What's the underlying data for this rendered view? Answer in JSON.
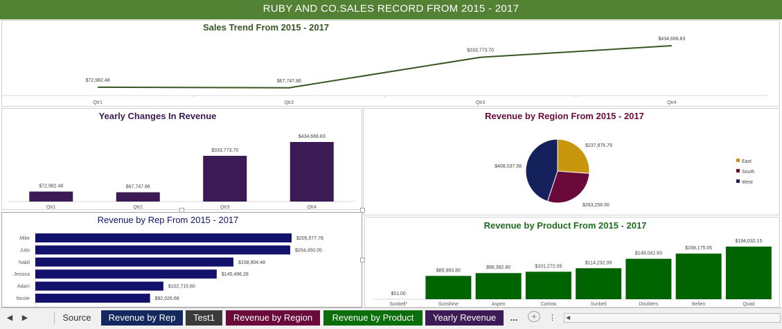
{
  "banner": {
    "title": "RUBY AND CO.SALES RECORD FROM 2015 - 2017"
  },
  "colors": {
    "green": "#548235",
    "darkgreen": "#006400",
    "purple": "#3c1a55",
    "navy": "#12126c",
    "gold": "#c8960c",
    "maroon": "#6a0a3a",
    "darknavy": "#14215a"
  },
  "charts": {
    "trend": {
      "title": "Sales Trend From 2015 - 2017"
    },
    "yearly": {
      "title": "Yearly Changes In Revenue"
    },
    "region": {
      "title": "Revenue by Region From 2015 - 2017"
    },
    "rep": {
      "title": "Revenue by Rep From 2015 - 2017"
    },
    "product": {
      "title": "Revenue by Product From 2015 - 2017"
    }
  },
  "chart_data": [
    {
      "type": "line",
      "title": "Sales Trend From 2015 - 2017",
      "categories": [
        "Qtr1",
        "Qtr2",
        "Qtr3",
        "Qtr4"
      ],
      "values": [
        72982.48,
        67747.86,
        333773.7,
        434666.83
      ],
      "labels": [
        "$72,982.48",
        "$67,747.86",
        "$333,773.70",
        "$434,666.83"
      ]
    },
    {
      "type": "bar",
      "title": "Yearly Changes In Revenue",
      "categories": [
        "Qtr1",
        "Qtr2",
        "Qtr3",
        "Qtr4"
      ],
      "values": [
        72982.48,
        67747.86,
        333773.7,
        434666.83
      ],
      "labels": [
        "$72,982.48",
        "$67,747.86",
        "$333,773.70",
        "$434,666.83"
      ]
    },
    {
      "type": "pie",
      "title": "Revenue by Region From 2015 - 2017",
      "categories": [
        "East",
        "South",
        "West"
      ],
      "values": [
        237876.79,
        263256.5,
        408037.58
      ],
      "labels": [
        "$237,876.79",
        "$263,256.50",
        "$408,037.58"
      ],
      "legend": "right"
    },
    {
      "type": "bar",
      "orientation": "horizontal",
      "title": "Revenue by Rep From 2015 - 2017",
      "categories": [
        "Mike",
        "Julie",
        "Nabil",
        "Jessica",
        "Adam",
        "Nicole"
      ],
      "values": [
        205577.78,
        204450.05,
        158904.48,
        145496.28,
        102715.6,
        92026.68
      ],
      "labels": [
        "$205,577.78",
        "$204,450.05",
        "$158,904.48",
        "$145,496.28",
        "$102,715.60",
        "$92,026.68"
      ]
    },
    {
      "type": "bar",
      "title": "Revenue by Product From 2015 - 2017",
      "categories": [
        "Sunbell*",
        "Sunshine",
        "Aspen",
        "Carlota",
        "Sunbell",
        "Doublers",
        "Bellen",
        "Quad"
      ],
      "values": [
        51.0,
        85983.8,
        96382.8,
        101272.05,
        114232.09,
        149041.93,
        168175.05,
        194032.15
      ],
      "labels": [
        "$51.00",
        "$85,983.80",
        "$96,382.80",
        "$101,272.05",
        "$114,232.09",
        "$149,041.93",
        "$168,175.05",
        "$194,032.15"
      ]
    }
  ],
  "tabs": [
    {
      "label": "Source",
      "bg": "#f0f0f0",
      "fg": "#333333"
    },
    {
      "label": "Revenue by Rep",
      "bg": "#12285e",
      "fg": "#ffffff"
    },
    {
      "label": "Test1",
      "bg": "#3a3a3a",
      "fg": "#ffffff"
    },
    {
      "label": "Revenue by Region",
      "bg": "#6a0a3a",
      "fg": "#ffffff"
    },
    {
      "label": "Revenue by Product",
      "bg": "#0a6e0a",
      "fg": "#ffffff"
    },
    {
      "label": "Yearly Revenue",
      "bg": "#3c1a55",
      "fg": "#ffffff"
    }
  ],
  "tabbar": {
    "more": "...",
    "add": "+"
  }
}
